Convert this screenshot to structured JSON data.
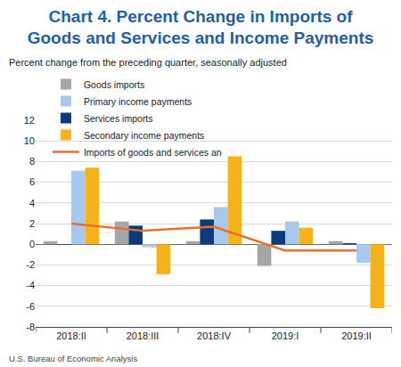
{
  "chart_data": {
    "type": "bar",
    "title": "Chart 4. Percent Change in Imports of\nGoods and Services and Income Payments",
    "subtitle": "Percent change from the preceding quarter, seasonally adjusted",
    "source": "U.S. Bureau of Economic Analysis",
    "categories": [
      "2018:II",
      "2018:III",
      "2018:IV",
      "2019:I",
      "2019:II"
    ],
    "series": [
      {
        "name": "Goods imports",
        "type": "bar",
        "color": "#a6a6a6",
        "values": [
          0.3,
          2.2,
          0.3,
          -2.1,
          0.3
        ]
      },
      {
        "name": "Services imports",
        "type": "bar",
        "color": "#0b3b7c",
        "values": [
          -0.05,
          1.8,
          2.4,
          1.3,
          0.1
        ]
      },
      {
        "name": "Primary income payments",
        "type": "bar",
        "color": "#a9c8ee",
        "values": [
          7.1,
          -0.3,
          3.6,
          2.2,
          -1.8
        ]
      },
      {
        "name": "Secondary income payments",
        "type": "bar",
        "color": "#f5b21a",
        "values": [
          7.4,
          -2.9,
          8.5,
          1.6,
          -6.2
        ]
      },
      {
        "name": "Imports of goods and services and income payments",
        "type": "line",
        "color": "#e8702a",
        "line_style": "solid",
        "marker": "none",
        "values": [
          2.0,
          1.3,
          1.7,
          -0.6,
          -0.6
        ]
      }
    ],
    "ylim": [
      -8,
      12
    ],
    "yticks": [
      -8,
      -6,
      -4,
      -2,
      0,
      2,
      4,
      6,
      8,
      10,
      12
    ],
    "grid": true,
    "legend": "top"
  }
}
